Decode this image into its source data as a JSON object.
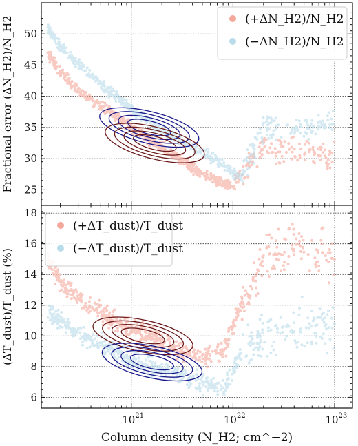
{
  "chart_data": [
    {
      "type": "scatter",
      "panel": "top",
      "ylabel": "Fractional error (ΔN_H2)/N_H2",
      "ylim": [
        22.5,
        55
      ],
      "yticks": [
        25,
        30,
        35,
        40,
        45,
        50
      ],
      "xscale": "log",
      "xlim": [
        1.3e+20,
        1.5e+23
      ],
      "grid": true,
      "legend_position": "top-right",
      "legend": [
        {
          "label": "(+ΔN_H2)/N_H2",
          "color": "#f4a79b"
        },
        {
          "label": "(−ΔN_H2)/N_H2",
          "color": "#b9dcea"
        }
      ],
      "series": [
        {
          "name": "(+ΔN_H2)/N_H2",
          "color": "#f4a79b",
          "points": [
            [
              1.5e+20,
              47
            ],
            [
              2e+20,
              44
            ],
            [
              3e+20,
              41
            ],
            [
              5e+20,
              38.5
            ],
            [
              7e+20,
              37
            ],
            [
              1e+21,
              35
            ],
            [
              1.5e+21,
              33
            ],
            [
              2e+21,
              32
            ],
            [
              3e+21,
              30
            ],
            [
              4e+21,
              28.5
            ],
            [
              6e+21,
              27
            ],
            [
              8e+21,
              26
            ],
            [
              1e+22,
              25.5
            ],
            [
              2e+22,
              32
            ],
            [
              5e+22,
              31
            ],
            [
              1e+23,
              30
            ]
          ]
        },
        {
          "name": "(−ΔN_H2)/N_H2",
          "color": "#b9dcea",
          "points": [
            [
              1.5e+20,
              51
            ],
            [
              2e+20,
              48
            ],
            [
              3e+20,
              45
            ],
            [
              5e+20,
              42
            ],
            [
              7e+20,
              40
            ],
            [
              1e+21,
              38
            ],
            [
              1.5e+21,
              36
            ],
            [
              2e+21,
              34.5
            ],
            [
              3e+21,
              33
            ],
            [
              5e+21,
              31
            ],
            [
              8e+21,
              29
            ],
            [
              1.2e+22,
              27
            ],
            [
              2e+22,
              35
            ],
            [
              5e+22,
              35
            ],
            [
              1e+23,
              36
            ]
          ]
        }
      ],
      "contours": [
        {
          "color": "#1a1a8c",
          "levels": 4,
          "center": [
            1.5e+21,
            35
          ]
        },
        {
          "color": "#6b1a1a",
          "levels": 4,
          "center": [
            1.7e+21,
            32.5
          ]
        }
      ]
    },
    {
      "type": "scatter",
      "panel": "bottom",
      "xlabel": "Column density (N_H2; cm^−2)",
      "ylabel": "(ΔT_dust)/T_dust (%)",
      "ylim": [
        5.3,
        18.5
      ],
      "yticks": [
        6,
        8,
        10,
        12,
        14,
        16,
        18
      ],
      "xscale": "log",
      "xlim": [
        1.3e+20,
        1.5e+23
      ],
      "xticks": [
        "10^21",
        "10^22",
        "10^23"
      ],
      "grid": true,
      "legend_position": "top-left",
      "legend": [
        {
          "label": "(+ΔT_dust)/T_dust",
          "color": "#f4a79b"
        },
        {
          "label": "(−ΔT_dust)/T_dust",
          "color": "#b9dcea"
        }
      ],
      "series": [
        {
          "name": "(+ΔT_dust)/T_dust",
          "color": "#f4a79b",
          "points": [
            [
              1.5e+20,
              15
            ],
            [
              2e+20,
              13.5
            ],
            [
              3e+20,
              12.5
            ],
            [
              5e+20,
              11.5
            ],
            [
              7e+20,
              11
            ],
            [
              1e+21,
              10.5
            ],
            [
              1.5e+21,
              10
            ],
            [
              2e+21,
              9.5
            ],
            [
              3e+21,
              9
            ],
            [
              5e+21,
              8.5
            ],
            [
              8e+21,
              9
            ],
            [
              1.2e+22,
              12
            ],
            [
              2e+22,
              15
            ],
            [
              4e+22,
              16
            ],
            [
              1e+23,
              15
            ]
          ]
        },
        {
          "name": "(−ΔT_dust)/T_dust",
          "color": "#b9dcea",
          "points": [
            [
              1.5e+20,
              11.5
            ],
            [
              2e+20,
              11
            ],
            [
              3e+20,
              10
            ],
            [
              5e+20,
              9.5
            ],
            [
              7e+20,
              9
            ],
            [
              1e+21,
              8.5
            ],
            [
              1.5e+21,
              8
            ],
            [
              2e+21,
              7.8
            ],
            [
              3e+21,
              7.5
            ],
            [
              5e+21,
              7
            ],
            [
              8e+21,
              6.5
            ],
            [
              1.2e+22,
              9
            ],
            [
              2e+22,
              10
            ],
            [
              5e+22,
              10.5
            ],
            [
              1e+23,
              11
            ]
          ]
        }
      ],
      "contours": [
        {
          "color": "#6b1a1a",
          "levels": 4,
          "center": [
            1.3e+21,
            10
          ]
        },
        {
          "color": "#1a1a8c",
          "levels": 4,
          "center": [
            1.6e+21,
            8.3
          ]
        }
      ]
    }
  ]
}
